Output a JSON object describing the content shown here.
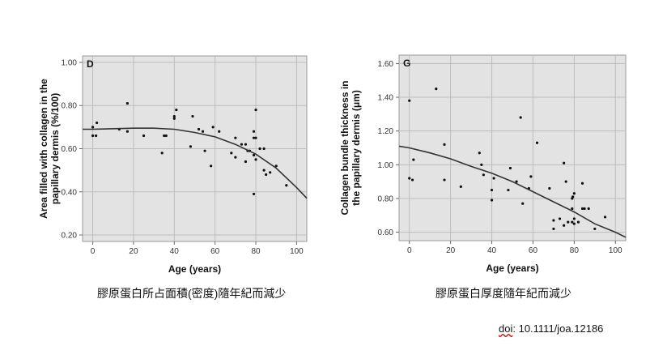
{
  "chart_data": [
    {
      "type": "scatter",
      "panel_label": "D",
      "xlabel": "Age (years)",
      "ylabel": [
        "Area filled with collagen in the",
        "papillary dermis (%/100)"
      ],
      "xlim": [
        -5,
        105
      ],
      "ylim": [
        0.17,
        1.03
      ],
      "xticks": [
        0,
        20,
        40,
        60,
        80,
        100
      ],
      "yticks": [
        "0.20",
        "0.40",
        "0.60",
        "0.80",
        "1.00"
      ],
      "grid": true,
      "points": [
        [
          0,
          0.66
        ],
        [
          0,
          0.7
        ],
        [
          1.6,
          0.66
        ],
        [
          2,
          0.72
        ],
        [
          13,
          0.69
        ],
        [
          17,
          0.81
        ],
        [
          17,
          0.68
        ],
        [
          25,
          0.66
        ],
        [
          34,
          0.58
        ],
        [
          35,
          0.66
        ],
        [
          36,
          0.66
        ],
        [
          40,
          0.75
        ],
        [
          40,
          0.74
        ],
        [
          41,
          0.78
        ],
        [
          48,
          0.61
        ],
        [
          49,
          0.75
        ],
        [
          52,
          0.69
        ],
        [
          54,
          0.68
        ],
        [
          55,
          0.59
        ],
        [
          58,
          0.52
        ],
        [
          59,
          0.7
        ],
        [
          62,
          0.68
        ],
        [
          68,
          0.58
        ],
        [
          70,
          0.65
        ],
        [
          70,
          0.56
        ],
        [
          73,
          0.62
        ],
        [
          75,
          0.62
        ],
        [
          75,
          0.54
        ],
        [
          76,
          0.59
        ],
        [
          77,
          0.59
        ],
        [
          79,
          0.68
        ],
        [
          79,
          0.65
        ],
        [
          80,
          0.65
        ],
        [
          80,
          0.78
        ],
        [
          79,
          0.57
        ],
        [
          80,
          0.55
        ],
        [
          79,
          0.39
        ],
        [
          82,
          0.6
        ],
        [
          84,
          0.6
        ],
        [
          84,
          0.5
        ],
        [
          85,
          0.48
        ],
        [
          87,
          0.49
        ],
        [
          90,
          0.52
        ],
        [
          95,
          0.43
        ]
      ],
      "fit_curve": [
        [
          -5,
          0.69
        ],
        [
          0,
          0.69
        ],
        [
          20,
          0.695
        ],
        [
          30,
          0.695
        ],
        [
          40,
          0.69
        ],
        [
          50,
          0.675
        ],
        [
          60,
          0.655
        ],
        [
          70,
          0.62
        ],
        [
          80,
          0.575
        ],
        [
          90,
          0.51
        ],
        [
          100,
          0.42
        ],
        [
          105,
          0.37
        ]
      ],
      "caption": "膠原蛋白所占面積(密度)隨年紀而減少"
    },
    {
      "type": "scatter",
      "panel_label": "G",
      "xlabel": "Age (years)",
      "ylabel": [
        "Collagen bundle thickness in",
        "the papillary dermis (μm)"
      ],
      "xlim": [
        -5,
        105
      ],
      "ylim": [
        0.55,
        1.65
      ],
      "xticks": [
        0,
        20,
        40,
        60,
        80,
        100
      ],
      "yticks": [
        "0.60",
        "0.80",
        "1.00",
        "1.20",
        "1.40",
        "1.60"
      ],
      "grid": true,
      "points": [
        [
          0,
          1.38
        ],
        [
          13,
          1.45
        ],
        [
          2,
          1.03
        ],
        [
          0,
          0.92
        ],
        [
          1.5,
          0.91
        ],
        [
          17,
          1.12
        ],
        [
          17,
          0.91
        ],
        [
          25,
          0.87
        ],
        [
          34,
          1.07
        ],
        [
          35,
          1.0
        ],
        [
          36,
          0.94
        ],
        [
          40,
          0.85
        ],
        [
          40,
          0.79
        ],
        [
          41,
          0.92
        ],
        [
          48,
          0.85
        ],
        [
          49,
          0.98
        ],
        [
          52,
          0.9
        ],
        [
          54,
          1.28
        ],
        [
          55,
          0.77
        ],
        [
          58,
          0.86
        ],
        [
          59,
          0.93
        ],
        [
          62,
          1.13
        ],
        [
          68,
          0.86
        ],
        [
          70,
          0.67
        ],
        [
          70,
          0.62
        ],
        [
          73,
          0.68
        ],
        [
          75,
          1.01
        ],
        [
          75,
          0.64
        ],
        [
          76,
          0.9
        ],
        [
          77,
          0.66
        ],
        [
          79,
          0.74
        ],
        [
          79,
          0.8
        ],
        [
          79.3,
          0.81
        ],
        [
          80,
          0.83
        ],
        [
          79,
          0.66
        ],
        [
          80,
          0.68
        ],
        [
          80,
          0.65
        ],
        [
          82,
          0.66
        ],
        [
          84,
          0.89
        ],
        [
          84,
          0.74
        ],
        [
          85,
          0.74
        ],
        [
          87,
          0.74
        ],
        [
          90,
          0.62
        ],
        [
          95,
          0.69
        ]
      ],
      "fit_curve": [
        [
          -5,
          1.11
        ],
        [
          0,
          1.1
        ],
        [
          10,
          1.07
        ],
        [
          20,
          1.035
        ],
        [
          30,
          0.99
        ],
        [
          40,
          0.95
        ],
        [
          50,
          0.9
        ],
        [
          60,
          0.84
        ],
        [
          70,
          0.78
        ],
        [
          80,
          0.72
        ],
        [
          90,
          0.65
        ],
        [
          100,
          0.6
        ],
        [
          105,
          0.57
        ]
      ],
      "caption": "膠原蛋白厚度隨年紀而減少"
    }
  ],
  "doi": {
    "prefix": "doi",
    "rest": ": 10.1111/joa.12186"
  }
}
